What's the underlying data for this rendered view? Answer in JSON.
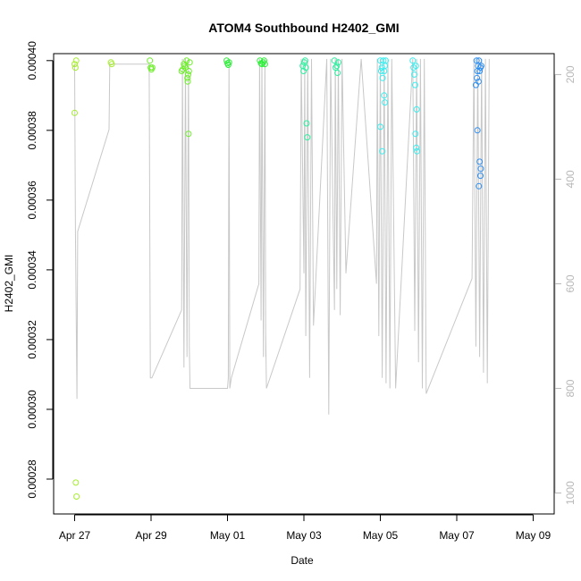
{
  "chart_data": {
    "type": "scatter",
    "title": "ATOM4 Southbound H2402_GMI",
    "xlabel": "Date",
    "ylabel": "H2402_GMI",
    "x_ticks": [
      "Apr 27",
      "Apr 29",
      "May 01",
      "May 03",
      "May 05",
      "May 07",
      "May 09"
    ],
    "y_ticks": [
      "0.00028",
      "0.00030",
      "0.00032",
      "0.00034",
      "0.00036",
      "0.00038",
      "0.00040"
    ],
    "y2_ticks": [
      "200",
      "400",
      "600",
      "800",
      "1000"
    ],
    "xlim_days": [
      -0.55,
      12.55
    ],
    "ylim": [
      0.00027,
      0.000402
    ],
    "y2lim": [
      1040,
      160
    ],
    "grid": false,
    "point_style": "open circle",
    "secondary_series": {
      "name": "pressure/altitude profile (right axis)",
      "color": "#c8c8c8",
      "style": "line"
    },
    "color_scale": "green → cyan → blue by time",
    "series": [
      {
        "color": "#a6ee2e",
        "points": [
          [
            0.0,
            0.000399
          ],
          [
            0.02,
            0.000398
          ],
          [
            0.04,
            0.0004
          ],
          [
            0.0,
            0.000385
          ],
          [
            0.03,
            0.000279
          ],
          [
            0.05,
            0.000275
          ],
          [
            0.95,
            0.0003995
          ],
          [
            0.97,
            0.000399
          ]
        ]
      },
      {
        "color": "#6ef02a",
        "points": [
          [
            1.97,
            0.0004
          ],
          [
            1.99,
            0.000398
          ],
          [
            2.01,
            0.0003975
          ],
          [
            2.03,
            0.000398
          ],
          [
            2.8,
            0.000397
          ],
          [
            2.83,
            0.0003975
          ],
          [
            2.86,
            0.000399
          ],
          [
            2.88,
            0.0003985
          ],
          [
            2.9,
            0.000398
          ],
          [
            2.93,
            0.0004
          ],
          [
            2.95,
            0.000395
          ],
          [
            2.97,
            0.000396
          ],
          [
            2.99,
            0.000397
          ],
          [
            3.01,
            0.0003995
          ],
          [
            2.98,
            0.000379
          ],
          [
            2.96,
            0.000394
          ]
        ]
      },
      {
        "color": "#2ef03a",
        "points": [
          [
            3.98,
            0.0004
          ],
          [
            4.0,
            0.0003992
          ],
          [
            4.02,
            0.0003988
          ],
          [
            4.04,
            0.0003995
          ],
          [
            4.85,
            0.0004
          ],
          [
            4.88,
            0.0003992
          ],
          [
            4.9,
            0.000399
          ],
          [
            4.93,
            0.0003995
          ],
          [
            4.96,
            0.0004
          ],
          [
            4.98,
            0.000399
          ]
        ]
      },
      {
        "color": "#2ef0a0",
        "points": [
          [
            5.97,
            0.0003985
          ],
          [
            5.99,
            0.000397
          ],
          [
            6.01,
            0.0003995
          ],
          [
            6.03,
            0.0004
          ],
          [
            6.05,
            0.000398
          ],
          [
            6.07,
            0.000382
          ],
          [
            6.09,
            0.000378
          ],
          [
            6.8,
            0.0004
          ],
          [
            6.83,
            0.000398
          ],
          [
            6.86,
            0.0003985
          ],
          [
            6.88,
            0.0003965
          ],
          [
            6.9,
            0.0003995
          ]
        ]
      },
      {
        "color": "#38eef0",
        "points": [
          [
            8.0,
            0.0004
          ],
          [
            8.02,
            0.000397
          ],
          [
            8.04,
            0.000398
          ],
          [
            8.06,
            0.000395
          ],
          [
            8.08,
            0.0004
          ],
          [
            8.1,
            0.000397
          ],
          [
            8.12,
            0.0003985
          ],
          [
            8.14,
            0.0004
          ],
          [
            8.0,
            0.000381
          ],
          [
            8.05,
            0.000374
          ],
          [
            8.1,
            0.00039
          ],
          [
            8.12,
            0.000388
          ],
          [
            8.85,
            0.0004
          ],
          [
            8.87,
            0.000398
          ],
          [
            8.89,
            0.000396
          ],
          [
            8.91,
            0.000393
          ],
          [
            8.93,
            0.0003985
          ],
          [
            8.95,
            0.000386
          ],
          [
            8.92,
            0.000379
          ],
          [
            8.94,
            0.000375
          ],
          [
            8.96,
            0.000374
          ]
        ]
      },
      {
        "color": "#2e8ef0",
        "points": [
          [
            10.52,
            0.0004
          ],
          [
            10.54,
            0.000397
          ],
          [
            10.56,
            0.0003985
          ],
          [
            10.58,
            0.0004
          ],
          [
            10.6,
            0.000397
          ],
          [
            10.62,
            0.000398
          ],
          [
            10.64,
            0.0003985
          ],
          [
            10.5,
            0.000393
          ],
          [
            10.53,
            0.000395
          ],
          [
            10.57,
            0.000394
          ],
          [
            10.54,
            0.00038
          ],
          [
            10.6,
            0.000371
          ],
          [
            10.63,
            0.000369
          ],
          [
            10.62,
            0.000367
          ],
          [
            10.58,
            0.000364
          ]
        ]
      }
    ],
    "profile_path": [
      [
        0.0,
        180
      ],
      [
        0.02,
        500
      ],
      [
        0.06,
        820
      ],
      [
        0.08,
        500
      ],
      [
        0.9,
        305
      ],
      [
        0.92,
        180
      ],
      [
        0.92,
        180
      ],
      [
        1.95,
        180
      ],
      [
        1.98,
        780
      ],
      [
        2.02,
        780
      ],
      [
        2.8,
        650
      ],
      [
        2.82,
        170
      ],
      [
        2.86,
        760
      ],
      [
        2.9,
        170
      ],
      [
        2.94,
        740
      ],
      [
        2.98,
        170
      ],
      [
        3.0,
        725
      ],
      [
        3.0,
        720
      ],
      [
        3.02,
        800
      ],
      [
        4.0,
        800
      ],
      [
        4.02,
        780
      ],
      [
        4.04,
        170
      ],
      [
        4.06,
        800
      ],
      [
        4.1,
        780
      ],
      [
        4.82,
        600
      ],
      [
        4.84,
        170
      ],
      [
        4.88,
        670
      ],
      [
        4.9,
        170
      ],
      [
        4.94,
        740
      ],
      [
        4.98,
        170
      ],
      [
        5.0,
        740
      ],
      [
        5.0,
        700
      ],
      [
        5.02,
        800
      ],
      [
        5.9,
        610
      ],
      [
        5.93,
        170
      ],
      [
        6.0,
        580
      ],
      [
        6.02,
        170
      ],
      [
        6.05,
        700
      ],
      [
        6.1,
        170
      ],
      [
        6.15,
        780
      ],
      [
        6.2,
        170
      ],
      [
        6.25,
        680
      ],
      [
        6.6,
        170
      ],
      [
        6.65,
        850
      ],
      [
        6.7,
        170
      ],
      [
        6.8,
        650
      ],
      [
        6.82,
        170
      ],
      [
        6.86,
        610
      ],
      [
        6.9,
        170
      ],
      [
        6.95,
        660
      ],
      [
        7.0,
        170
      ],
      [
        7.1,
        580
      ],
      [
        7.5,
        170
      ],
      [
        7.9,
        600
      ],
      [
        7.92,
        170
      ],
      [
        7.96,
        700
      ],
      [
        8.0,
        170
      ],
      [
        8.05,
        780
      ],
      [
        8.1,
        170
      ],
      [
        8.15,
        790
      ],
      [
        8.2,
        170
      ],
      [
        8.25,
        800
      ],
      [
        8.3,
        170
      ],
      [
        8.4,
        800
      ],
      [
        8.85,
        170
      ],
      [
        8.9,
        690
      ],
      [
        8.95,
        170
      ],
      [
        9.0,
        750
      ],
      [
        9.05,
        170
      ],
      [
        9.1,
        800
      ],
      [
        9.15,
        170
      ],
      [
        9.2,
        810
      ],
      [
        10.4,
        590
      ],
      [
        10.45,
        170
      ],
      [
        10.5,
        720
      ],
      [
        10.55,
        170
      ],
      [
        10.6,
        740
      ],
      [
        10.65,
        170
      ],
      [
        10.7,
        770
      ],
      [
        10.75,
        170
      ],
      [
        10.8,
        790
      ],
      [
        10.85,
        170
      ]
    ]
  }
}
